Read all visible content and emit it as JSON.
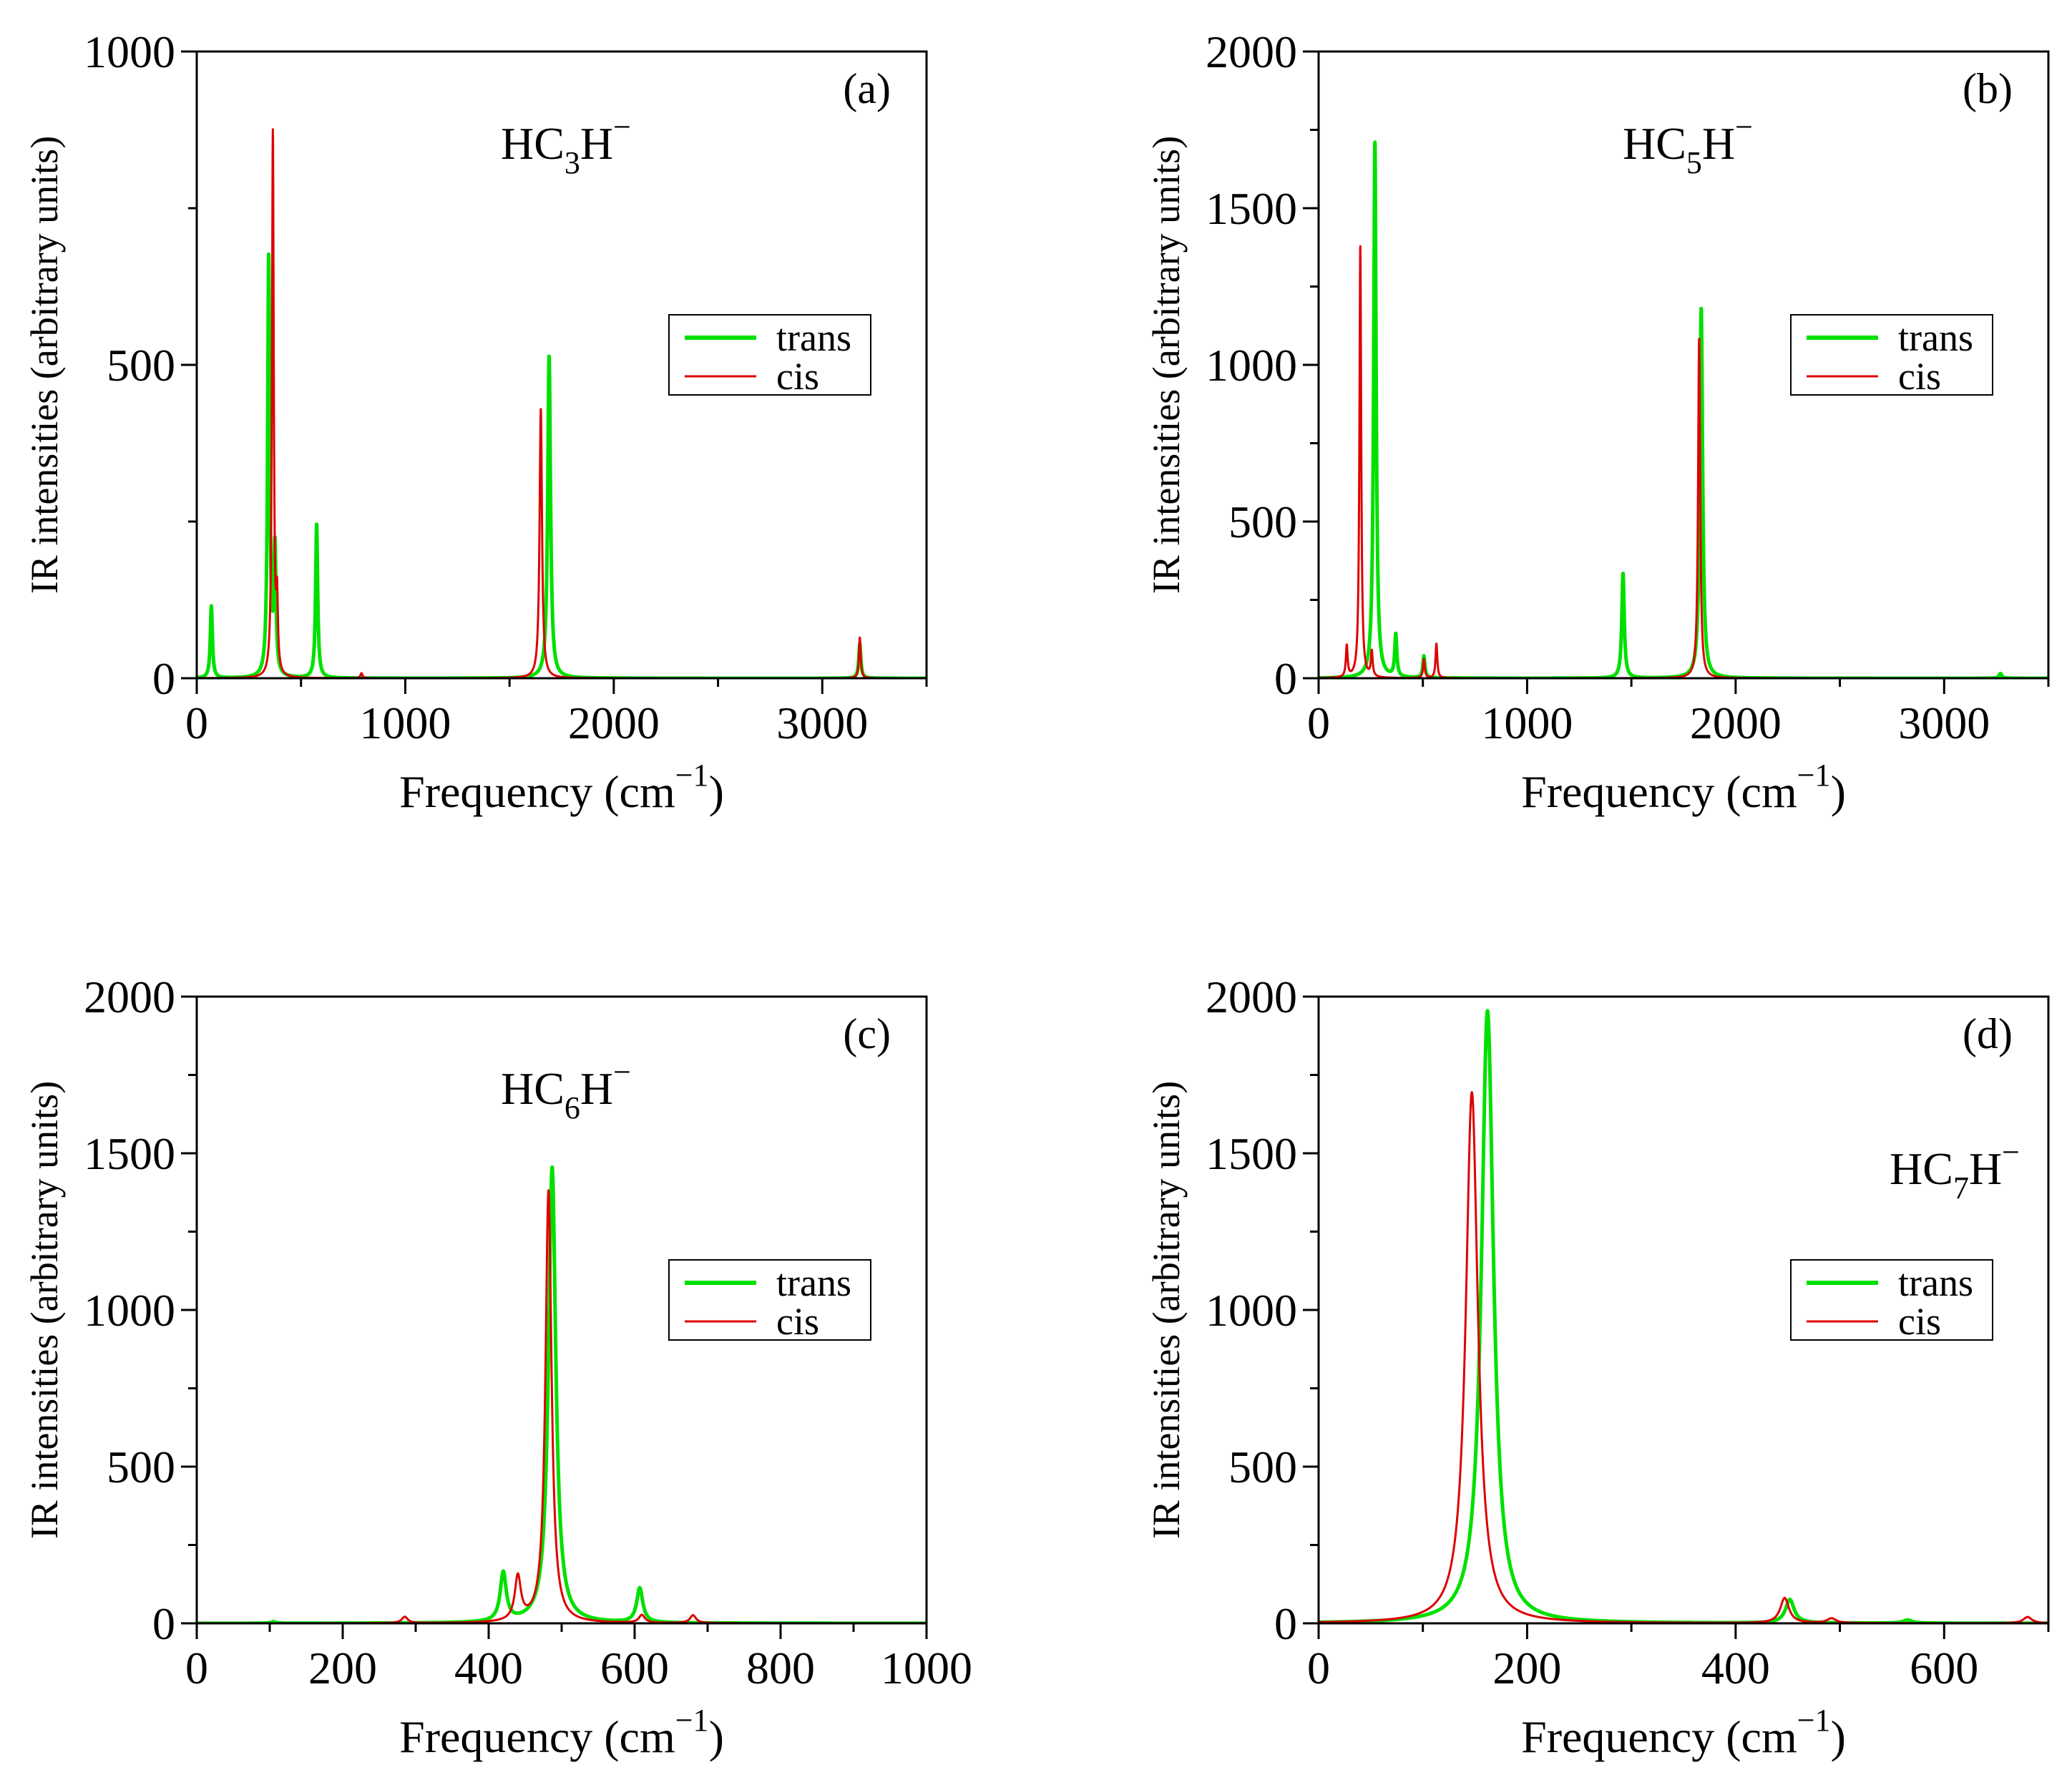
{
  "chart_data": [
    {
      "type": "line",
      "panel_label": "(a)",
      "molecule": {
        "prefix": "HC",
        "sub": "3",
        "base": "H",
        "sup": "−"
      },
      "xlabel": "Frequency (cm",
      "xlabel_sup": "−1",
      "xlabel_close": ")",
      "ylabel": "IR intensities (arbitrary units)",
      "xlim": [
        0,
        3500
      ],
      "ylim": [
        0,
        1000
      ],
      "xticks": [
        0,
        1000,
        2000,
        3000
      ],
      "xtick_labels": [
        "0",
        "1000",
        "2000",
        "3000"
      ],
      "yticks": [
        0,
        500,
        1000
      ],
      "ytick_labels": [
        "0",
        "500",
        "1000"
      ],
      "legend": [
        "trans",
        "cis"
      ],
      "series": [
        {
          "name": "trans",
          "color": "#00e000",
          "peaks": [
            [
              70,
              115,
              6
            ],
            [
              345,
              670,
              6
            ],
            [
              375,
              200,
              6
            ],
            [
              575,
              245,
              6
            ],
            [
              1690,
              515,
              8
            ],
            [
              3180,
              55,
              6
            ]
          ]
        },
        {
          "name": "cis",
          "color": "#dd0000",
          "peaks": [
            [
              365,
              870,
              5
            ],
            [
              385,
              110,
              5
            ],
            [
              790,
              8,
              6
            ],
            [
              1650,
              430,
              7
            ],
            [
              3180,
              65,
              5
            ]
          ]
        }
      ]
    },
    {
      "type": "line",
      "panel_label": "(b)",
      "molecule": {
        "prefix": "HC",
        "sub": "5",
        "base": "H",
        "sup": "−"
      },
      "xlabel": "Frequency (cm",
      "xlabel_sup": "−1",
      "xlabel_close": ")",
      "ylabel": "IR intensities (arbitrary units)",
      "xlim": [
        0,
        3500
      ],
      "ylim": [
        0,
        2000
      ],
      "xticks": [
        0,
        1000,
        2000,
        3000
      ],
      "xtick_labels": [
        "0",
        "1000",
        "2000",
        "3000"
      ],
      "yticks": [
        0,
        500,
        1000,
        1500,
        2000
      ],
      "ytick_labels": [
        "0",
        "500",
        "1000",
        "1500",
        "2000"
      ],
      "legend": [
        "trans",
        "cis"
      ],
      "series": [
        {
          "name": "trans",
          "color": "#00e000",
          "peaks": [
            [
              270,
              1715,
              7
            ],
            [
              370,
              135,
              6
            ],
            [
              505,
              70,
              6
            ],
            [
              1460,
              335,
              7
            ],
            [
              1835,
              1180,
              8
            ],
            [
              3270,
              15,
              8
            ]
          ]
        },
        {
          "name": "cis",
          "color": "#dd0000",
          "peaks": [
            [
              135,
              100,
              5
            ],
            [
              200,
              1385,
              5
            ],
            [
              255,
              80,
              5
            ],
            [
              505,
              60,
              5
            ],
            [
              565,
              110,
              5
            ],
            [
              1825,
              1085,
              6
            ]
          ]
        }
      ]
    },
    {
      "type": "line",
      "panel_label": "(c)",
      "molecule": {
        "prefix": "HC",
        "sub": "6",
        "base": "H",
        "sup": "−"
      },
      "xlabel": "Frequency (cm",
      "xlabel_sup": "−1",
      "xlabel_close": ")",
      "ylabel": "IR intensities (arbitrary units)",
      "xlim": [
        0,
        1000
      ],
      "ylim": [
        0,
        2000
      ],
      "xticks": [
        0,
        200,
        400,
        600,
        800,
        1000
      ],
      "xtick_labels": [
        "0",
        "200",
        "400",
        "600",
        "800",
        "1000"
      ],
      "yticks": [
        0,
        500,
        1000,
        1500,
        2000
      ],
      "ytick_labels": [
        "0",
        "500",
        "1000",
        "1500",
        "2000"
      ],
      "legend": [
        "trans",
        "cis"
      ],
      "series": [
        {
          "name": "trans",
          "color": "#00e000",
          "peaks": [
            [
              105,
              5,
              4
            ],
            [
              420,
              155,
              5
            ],
            [
              487,
              1455,
              6
            ],
            [
              607,
              110,
              5
            ]
          ]
        },
        {
          "name": "cis",
          "color": "#dd0000",
          "peaks": [
            [
              285,
              20,
              5
            ],
            [
              440,
              140,
              5
            ],
            [
              482,
              1380,
              5
            ],
            [
              610,
              25,
              5
            ],
            [
              680,
              25,
              5
            ]
          ]
        }
      ]
    },
    {
      "type": "line",
      "panel_label": "(d)",
      "molecule": {
        "prefix": "HC",
        "sub": "7",
        "base": "H",
        "sup": "−"
      },
      "xlabel": "Frequency (cm",
      "xlabel_sup": "−1",
      "xlabel_close": ")",
      "ylabel": "IR intensities (arbitrary units)",
      "xlim": [
        0,
        700
      ],
      "ylim": [
        0,
        2000
      ],
      "xticks": [
        0,
        200,
        400,
        600
      ],
      "xtick_labels": [
        "0",
        "200",
        "400",
        "600"
      ],
      "yticks": [
        0,
        500,
        1000,
        1500,
        2000
      ],
      "ytick_labels": [
        "0",
        "500",
        "1000",
        "1500",
        "2000"
      ],
      "legend": [
        "trans",
        "cis"
      ],
      "series": [
        {
          "name": "trans",
          "color": "#00e000",
          "peaks": [
            [
              162,
              1955,
              7
            ],
            [
              452,
              75,
              5
            ],
            [
              565,
              10,
              5
            ]
          ]
        },
        {
          "name": "cis",
          "color": "#dd0000",
          "peaks": [
            [
              147,
              1695,
              7
            ],
            [
              447,
              80,
              5
            ],
            [
              492,
              15,
              5
            ],
            [
              680,
              20,
              5
            ]
          ]
        }
      ]
    }
  ]
}
